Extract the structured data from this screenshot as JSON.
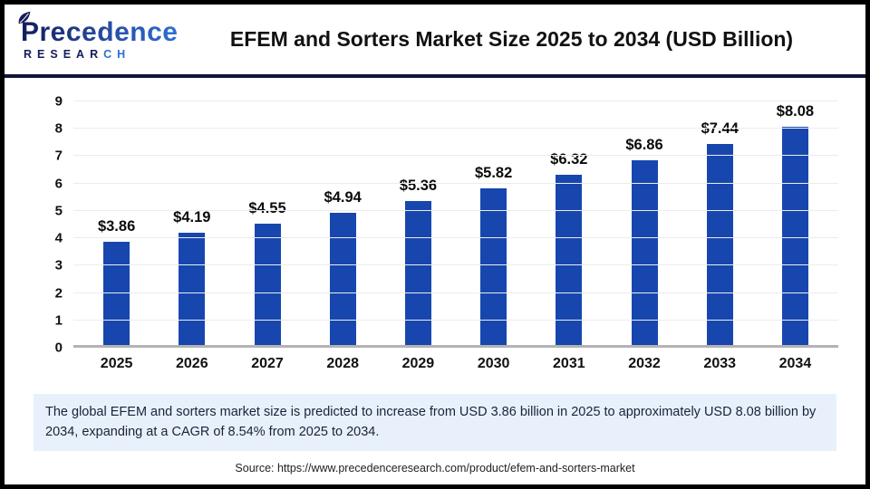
{
  "header": {
    "title": "EFEM and Sorters Market Size 2025 to 2034 (USD Billion)",
    "logo": {
      "brand": "Precedence",
      "research_dark": "RESEAR",
      "research_light": "CH"
    }
  },
  "chart_data": {
    "type": "bar",
    "title": "EFEM and Sorters Market Size 2025 to 2034 (USD Billion)",
    "categories": [
      "2025",
      "2026",
      "2027",
      "2028",
      "2029",
      "2030",
      "2031",
      "2032",
      "2033",
      "2034"
    ],
    "values": [
      3.86,
      4.19,
      4.55,
      4.94,
      5.36,
      5.82,
      6.32,
      6.86,
      7.44,
      8.08
    ],
    "value_prefix": "$",
    "xlabel": "",
    "ylabel": "",
    "ylim": [
      0,
      9
    ],
    "ytick_step": 1,
    "grid": true,
    "legend": false,
    "bar_color": "#1747ae"
  },
  "callout": {
    "text": "The global EFEM and sorters market size is predicted to increase from USD 3.86 billion in 2025 to approximately USD 8.08 billion by 2034, expanding at a CAGR of 8.54% from 2025 to 2034."
  },
  "footer": {
    "source": "Source: https://www.precedenceresearch.com/product/efem-and-sorters-market"
  },
  "colors": {
    "bar": "#1747ae",
    "divider": "#121438",
    "callout_bg": "#e8f1fb",
    "logo_navy": "#141c5a",
    "logo_blue": "#2e6fd1"
  }
}
